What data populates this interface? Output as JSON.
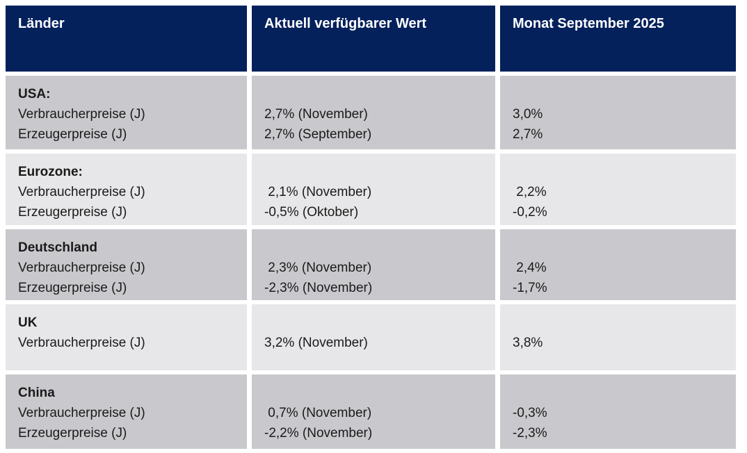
{
  "header": {
    "col_country": "Länder",
    "col_current": "Aktuell verfügbarer Wert",
    "col_month": "Monat September 2025"
  },
  "rows": [
    {
      "country": "USA:",
      "metrics": "Verbraucherpreise (J)\nErzeugerpreise (J)",
      "current": "2,7% (November)\n2,7% (September)",
      "month": "3,0%\n2,7%"
    },
    {
      "country": "Eurozone:",
      "metrics": "Verbraucherpreise (J)\nErzeugerpreise (J)",
      "current": " 2,1% (November)\n-0,5% (Oktober)",
      "month": " 2,2%\n-0,2%"
    },
    {
      "country": "Deutschland",
      "metrics": "Verbraucherpreise (J)\nErzeugerpreise (J)",
      "current": " 2,3% (November)\n-2,3% (November)",
      "month": " 2,4%\n-1,7%"
    },
    {
      "country": "UK",
      "metrics": "Verbraucherpreise (J)",
      "current": "3,2% (November)",
      "month": "3,8%"
    },
    {
      "country": "China",
      "metrics": "Verbraucherpreise (J)\nErzeugerpreise (J)",
      "current": " 0,7% (November)\n-2,2% (November)",
      "month": "-0,3%\n-2,3%"
    }
  ],
  "colors": {
    "header_bg": "#04215c",
    "row_dark": "#c9c9cd",
    "row_light": "#e7e7e9",
    "text_dark": "#1a1a1a",
    "header_text": "#ffffff",
    "page_bg": "#ffffff"
  }
}
